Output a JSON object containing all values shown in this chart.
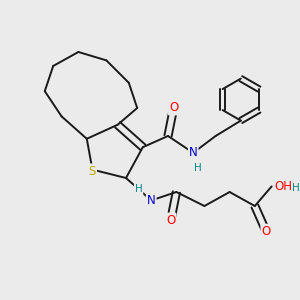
{
  "bg_color": "#ebebeb",
  "bond_color": "#1a1a1a",
  "bond_width": 1.4,
  "atom_colors": {
    "O": "#ff0000",
    "N": "#0000cc",
    "S": "#bbaa00",
    "H": "#008888",
    "C": "#1a1a1a"
  },
  "font_size_atom": 8.5,
  "font_size_h": 7.5
}
